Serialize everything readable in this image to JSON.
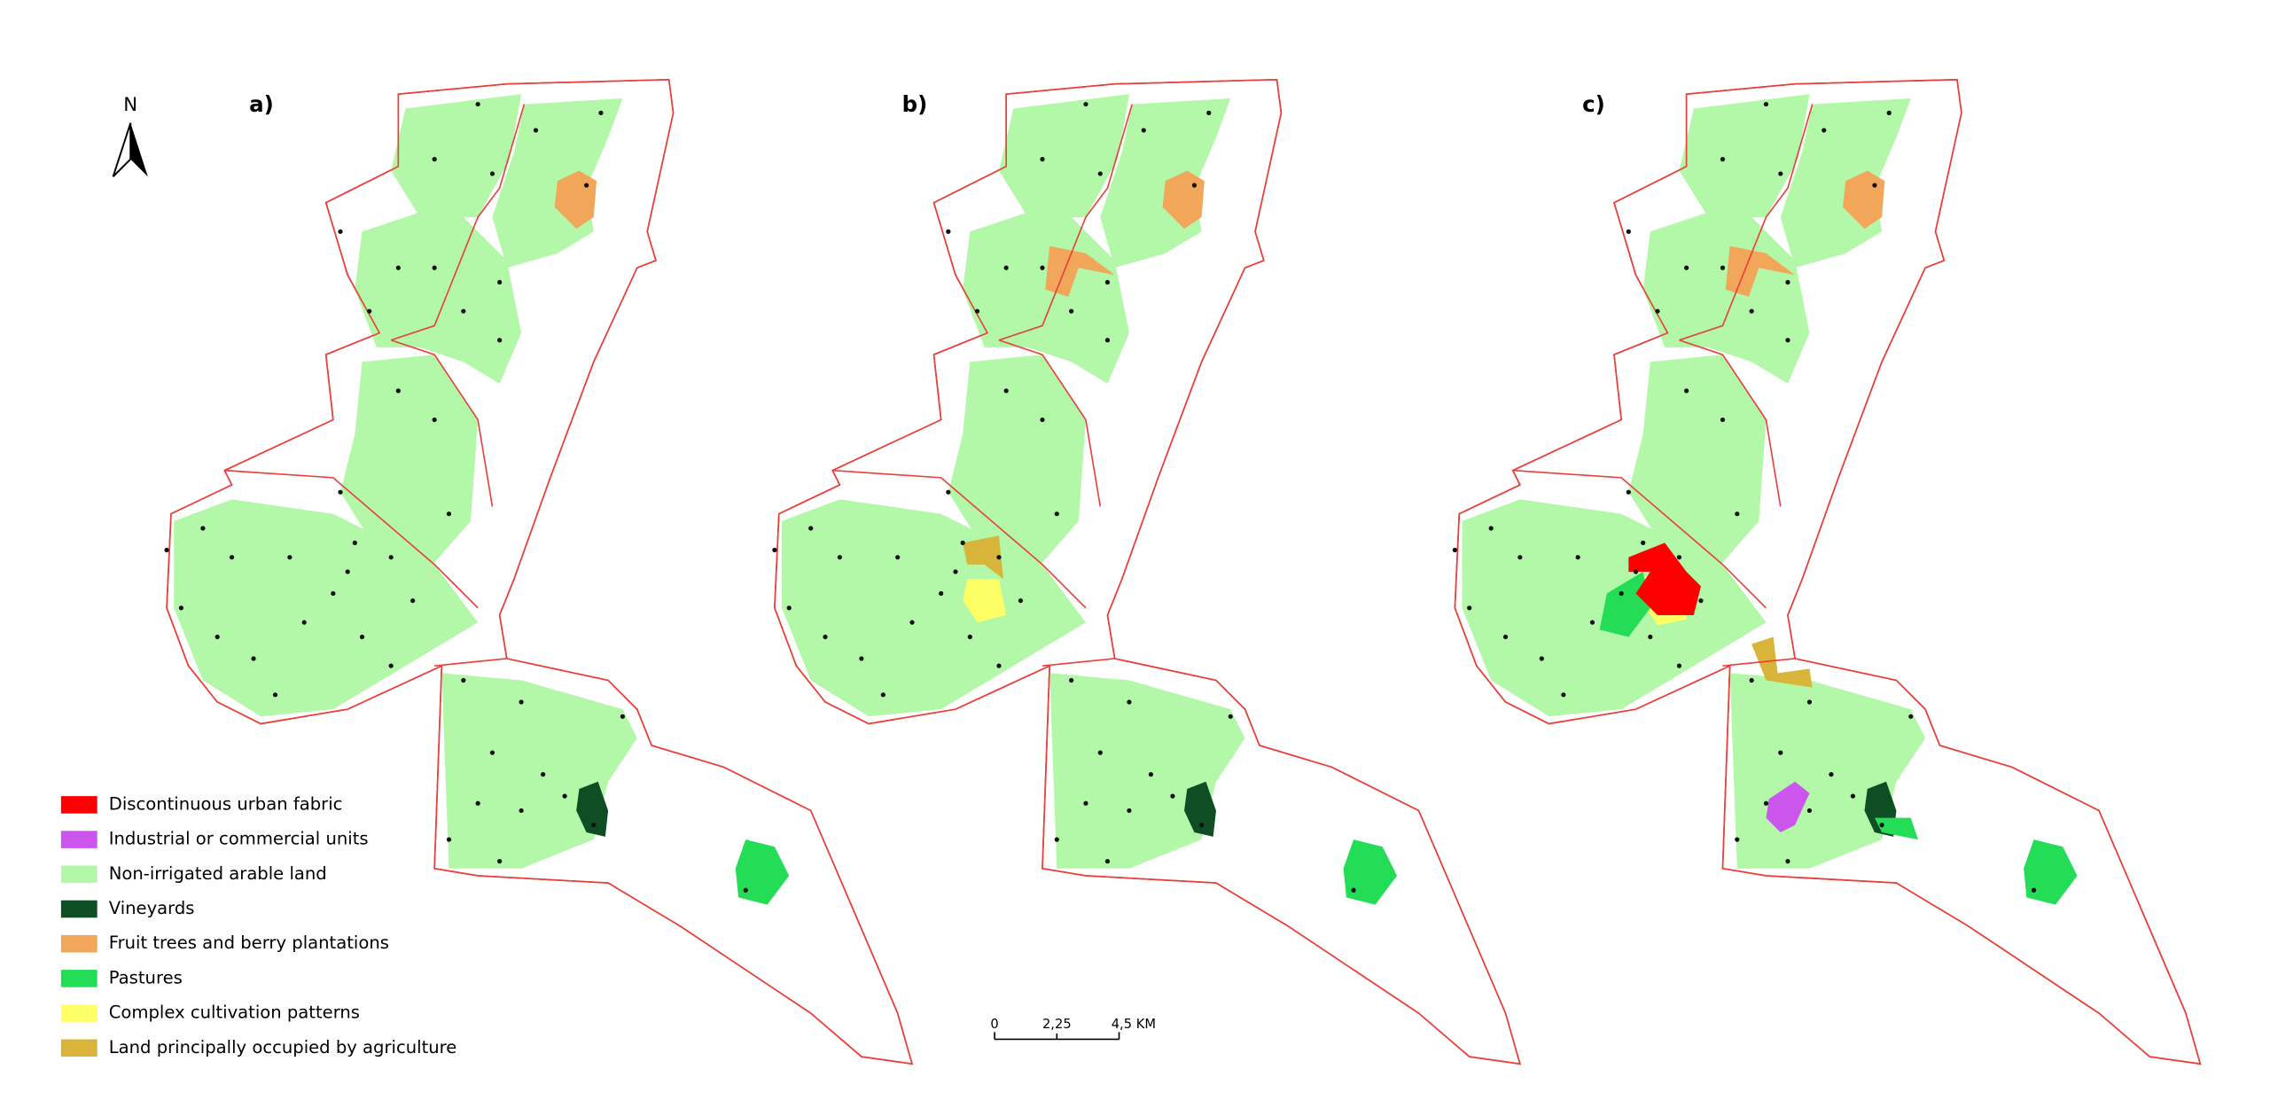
{
  "north": "N",
  "panels": [
    {
      "label": "a)"
    },
    {
      "label": "b)"
    },
    {
      "label": "c)"
    }
  ],
  "legend": [
    {
      "label": "Discontinuous urban fabric",
      "color": "#ff0000"
    },
    {
      "label": "Industrial or commercial units",
      "color": "#cc55ee"
    },
    {
      "label": "Non-irrigated arable land",
      "color": "#b3f7a8"
    },
    {
      "label": "Vineyards",
      "color": "#0f4d24"
    },
    {
      "label": "Fruit trees and berry plantations",
      "color": "#f2a65a"
    },
    {
      "label": "Pastures",
      "color": "#22dd55"
    },
    {
      "label": "Complex cultivation patterns",
      "color": "#ffff66"
    },
    {
      "label": "Land principally occupied by agriculture",
      "color": "#d9b43a"
    }
  ],
  "scale_bar": {
    "labels": [
      "0",
      "2,25",
      "4,5 KM"
    ]
  }
}
